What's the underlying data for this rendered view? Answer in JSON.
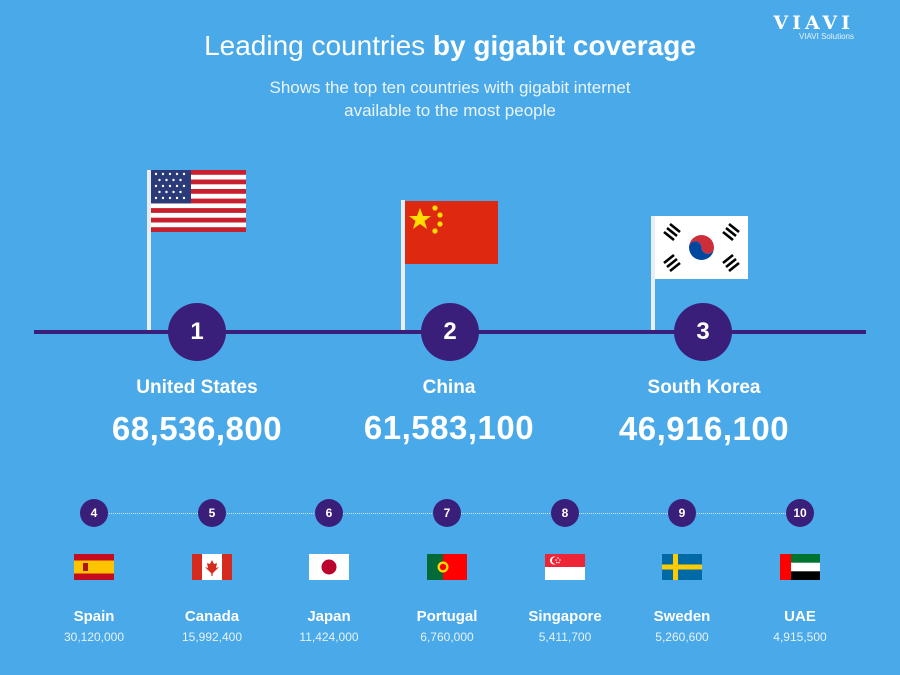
{
  "brand": {
    "logo_text": "VIAVI",
    "logo_sub": "VIAVI Solutions"
  },
  "header": {
    "title_light": "Leading countries",
    "title_bold": "by gigabit coverage",
    "subtitle": "Shows the top ten countries with gigabit internet available to the most people"
  },
  "colors": {
    "background": "#4aa9e8",
    "accent": "#3a1f7a",
    "text": "#ffffff"
  },
  "chart_data": {
    "type": "table",
    "title": "Leading countries by gigabit coverage",
    "subtitle": "Shows the top ten countries with gigabit internet available to the most people",
    "columns": [
      "rank",
      "country",
      "coverage"
    ],
    "rows": [
      {
        "rank": "1",
        "country": "United States",
        "value": 68536800,
        "value_label": "68,536,800",
        "flag": "united-states-flag-icon"
      },
      {
        "rank": "2",
        "country": "China",
        "value": 61583100,
        "value_label": "61,583,100",
        "flag": "china-flag-icon"
      },
      {
        "rank": "3",
        "country": "South Korea",
        "value": 46916100,
        "value_label": "46,916,100",
        "flag": "south-korea-flag-icon"
      },
      {
        "rank": "4",
        "country": "Spain",
        "value": 30120000,
        "value_label": "30,120,000",
        "flag": "spain-flag-icon"
      },
      {
        "rank": "5",
        "country": "Canada",
        "value": 15992400,
        "value_label": "15,992,400",
        "flag": "canada-flag-icon"
      },
      {
        "rank": "6",
        "country": "Japan",
        "value": 11424000,
        "value_label": "11,424,000",
        "flag": "japan-flag-icon"
      },
      {
        "rank": "7",
        "country": "Portugal",
        "value": 6760000,
        "value_label": "6,760,000",
        "flag": "portugal-flag-icon"
      },
      {
        "rank": "8",
        "country": "Singapore",
        "value": 5411700,
        "value_label": "5,411,700",
        "flag": "singapore-flag-icon"
      },
      {
        "rank": "9",
        "country": "Sweden",
        "value": 5260600,
        "value_label": "5,260,600",
        "flag": "sweden-flag-icon"
      },
      {
        "rank": "10",
        "country": "UAE",
        "value": 4915500,
        "value_label": "4,915,500",
        "flag": "uae-flag-icon"
      }
    ]
  }
}
